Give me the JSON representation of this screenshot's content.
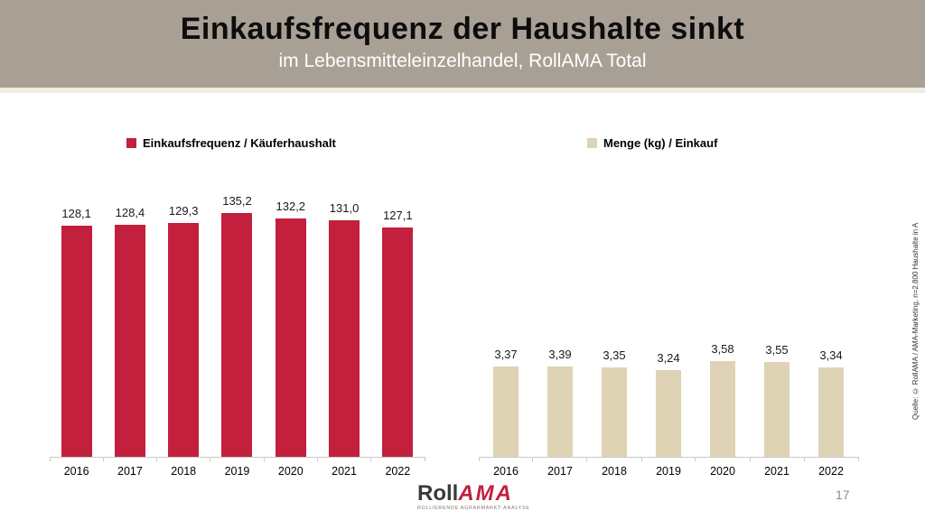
{
  "header": {
    "title": "Einkaufsfrequenz der Haushalte sinkt",
    "subtitle": "im Lebensmitteleinzelhandel, RollAMA Total"
  },
  "colors": {
    "header_band": "#a8a094",
    "red_series": "#c2203d",
    "beige_series": "#ded3b4",
    "axis_line": "#c9c9c9"
  },
  "chart_data": [
    {
      "type": "bar",
      "title": "Einkaufsfrequenz / Käuferhaushalt",
      "categories": [
        "2016",
        "2017",
        "2018",
        "2019",
        "2020",
        "2021",
        "2022"
      ],
      "values": [
        128.1,
        128.4,
        129.3,
        135.2,
        132.2,
        131.0,
        127.1
      ],
      "value_labels": [
        "128,1",
        "128,4",
        "129,3",
        "135,2",
        "132,2",
        "131,0",
        "127,1"
      ],
      "bar_color": "#c2203d",
      "ylim": [
        0,
        140
      ],
      "grid": false,
      "legend_position": "top",
      "xlabel": "",
      "ylabel": ""
    },
    {
      "type": "bar",
      "title": "Menge (kg) / Einkauf",
      "categories": [
        "2016",
        "2017",
        "2018",
        "2019",
        "2020",
        "2021",
        "2022"
      ],
      "values": [
        3.37,
        3.39,
        3.35,
        3.24,
        3.58,
        3.55,
        3.34
      ],
      "value_labels": [
        "3,37",
        "3,39",
        "3,35",
        "3,24",
        "3,58",
        "3,55",
        "3,34"
      ],
      "bar_color": "#ded3b4",
      "ylim": [
        0,
        3.72
      ],
      "grid": false,
      "legend_position": "top",
      "xlabel": "",
      "ylabel": ""
    }
  ],
  "legends": {
    "left_label": "Einkaufsfrequenz / Käuferhaushalt",
    "right_label": "Menge (kg) / Einkauf"
  },
  "source_note": "Quelle: © RollAMA / AMA-Marketing, n=2.800 Haushalte in A",
  "footer": {
    "logo_part1": "Roll",
    "logo_part2": "AMA",
    "logo_tagline": "ROLLIERENDE AGRARMARKT-ANALYSE",
    "page_number": "17"
  }
}
